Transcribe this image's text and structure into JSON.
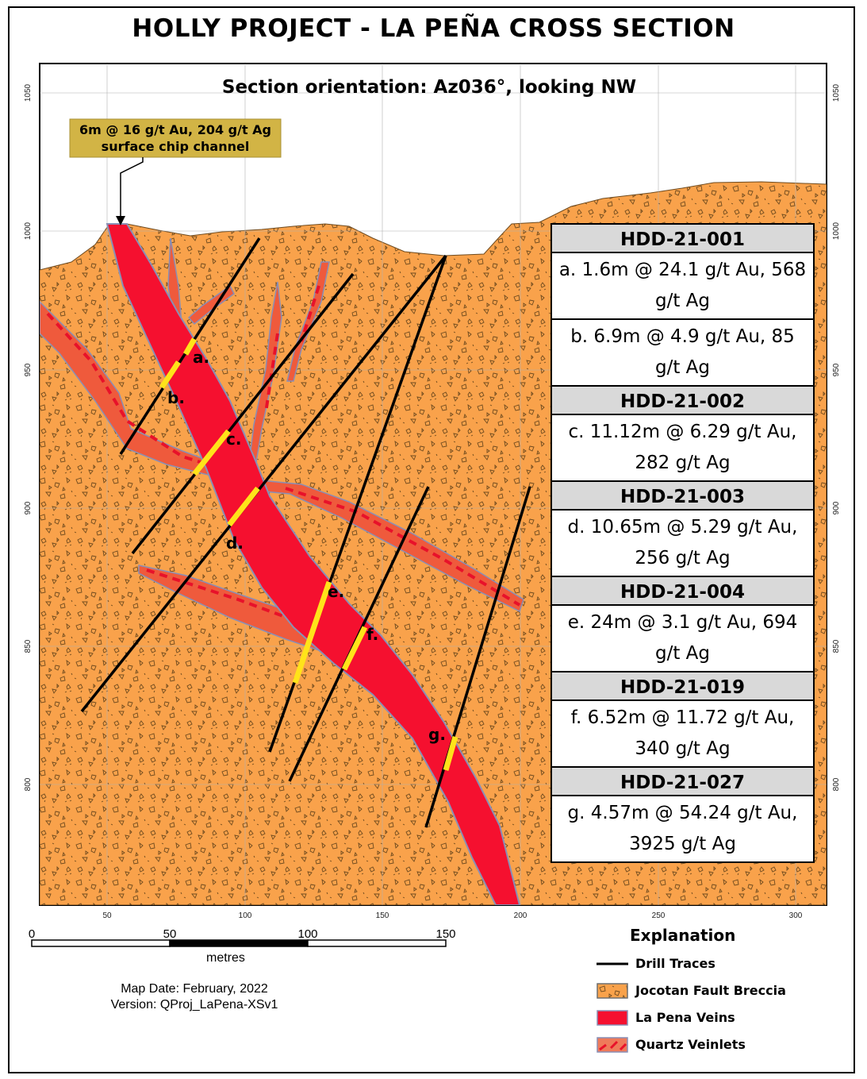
{
  "title": "HOLLY PROJECT - LA PEÑA CROSS SECTION",
  "section_orientation": "Section orientation: Az036°, looking NW",
  "callout": {
    "line1": "6m @ 16 g/t Au, 204 g/t Ag",
    "line2": "surface chip channel"
  },
  "elevation_ticks": [
    "1050",
    "1000",
    "950",
    "900",
    "850",
    "800"
  ],
  "distance_ticks": [
    "50",
    "100",
    "150",
    "200",
    "250",
    "300"
  ],
  "intercept_labels": [
    "a.",
    "b.",
    "c.",
    "d.",
    "e.",
    "f.",
    "g."
  ],
  "results": [
    {
      "hole": "HDD-21-001",
      "items": [
        "a. 1.6m @ 24.1 g/t Au, 568 g/t Ag",
        "b. 6.9m @ 4.9 g/t Au, 85 g/t Ag"
      ]
    },
    {
      "hole": "HDD-21-002",
      "items": [
        "c. 11.12m @ 6.29 g/t Au, 282 g/t Ag"
      ]
    },
    {
      "hole": "HDD-21-003",
      "items": [
        "d. 10.65m @ 5.29 g/t Au, 256 g/t Ag"
      ]
    },
    {
      "hole": "HDD-21-004",
      "items": [
        "e. 24m @ 3.1 g/t Au, 694 g/t Ag"
      ]
    },
    {
      "hole": "HDD-21-019",
      "items": [
        "f. 6.52m @ 11.72 g/t Au, 340 g/t Ag"
      ]
    },
    {
      "hole": "HDD-21-027",
      "items": [
        "g. 4.57m @ 54.24 g/t Au, 3925 g/t Ag"
      ]
    }
  ],
  "scale": {
    "ticks": [
      "0",
      "50",
      "100",
      "150"
    ],
    "unit": "metres"
  },
  "map_date": "Map Date: February, 2022",
  "version": "Version: QProj_LaPena-XSv1",
  "legend": {
    "title": "Explanation",
    "items": [
      {
        "label": "Drill Traces",
        "swatch": "line"
      },
      {
        "label": "Jocotan Fault Breccia",
        "swatch": "breccia"
      },
      {
        "label": "La Pena Veins",
        "swatch": "vein"
      },
      {
        "label": "Quartz Veinlets",
        "swatch": "veinlet"
      }
    ]
  },
  "colors": {
    "breccia": "#f9a24b",
    "vein": "#f5102f",
    "veinlet": "#ef5a3c",
    "intercept": "#ffe31a",
    "callout_bg": "#d2b445",
    "header_bg": "#d9d9d9"
  }
}
